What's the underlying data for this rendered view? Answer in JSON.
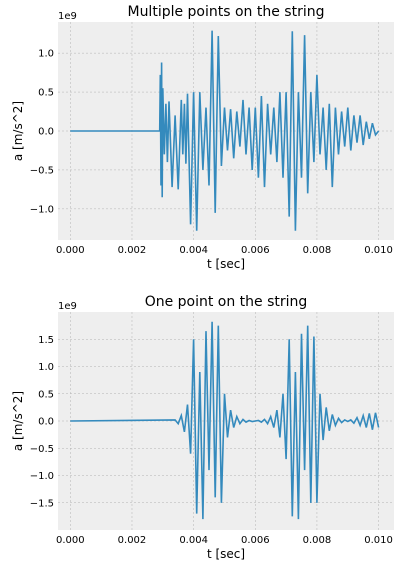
{
  "chart_data": [
    {
      "type": "line",
      "title": "Multiple points on the string",
      "xlabel": "t [sec]",
      "ylabel": "a [m/s^2]",
      "offset_label": "1e9",
      "xlim": [
        -0.0004,
        0.0105
      ],
      "ylim": [
        -1.4,
        1.4
      ],
      "xticks": [
        0.0,
        0.002,
        0.004,
        0.006,
        0.008,
        0.01
      ],
      "xtick_labels": [
        "0.000",
        "0.002",
        "0.004",
        "0.006",
        "0.008",
        "0.010"
      ],
      "yticks": [
        1.0,
        0.5,
        0.0,
        -0.5,
        -1.0
      ],
      "ytick_labels": [
        "1.0",
        "0.5",
        "0.0",
        "−0.5",
        "−1.0"
      ],
      "grid": true,
      "color": "#348ABD",
      "series": [
        {
          "x": [
            0.0,
            0.0029,
            0.00292,
            0.00294,
            0.00296,
            0.00298,
            0.003,
            0.00305,
            0.0031,
            0.00315,
            0.0032,
            0.0033,
            0.0034,
            0.0035,
            0.0036,
            0.00365,
            0.0037,
            0.00375,
            0.0038,
            0.0039,
            0.004,
            0.0041,
            0.0042,
            0.0043,
            0.0044,
            0.0045,
            0.0046,
            0.0047,
            0.0048,
            0.0049,
            0.005,
            0.0051,
            0.0052,
            0.0053,
            0.0054,
            0.0055,
            0.0056,
            0.0057,
            0.0058,
            0.0059,
            0.006,
            0.0061,
            0.0062,
            0.0063,
            0.0064,
            0.0065,
            0.0066,
            0.0067,
            0.0068,
            0.0069,
            0.007,
            0.0071,
            0.0072,
            0.0073,
            0.0074,
            0.0075,
            0.0076,
            0.0077,
            0.0078,
            0.0079,
            0.008,
            0.0081,
            0.0082,
            0.0083,
            0.0084,
            0.0085,
            0.0086,
            0.0087,
            0.0088,
            0.0089,
            0.009,
            0.0091,
            0.0092,
            0.0093,
            0.0094,
            0.0095,
            0.0096,
            0.0097,
            0.0098,
            0.0099,
            0.01
          ],
          "y": [
            0.0,
            0.0,
            0.72,
            -0.7,
            0.88,
            -0.85,
            0.55,
            -0.3,
            0.35,
            -0.4,
            0.38,
            -0.72,
            0.2,
            -0.75,
            0.4,
            -0.3,
            0.35,
            -0.42,
            0.48,
            -1.2,
            0.5,
            -1.28,
            0.5,
            -0.5,
            0.3,
            -0.7,
            1.29,
            -1.05,
            1.22,
            -0.45,
            0.3,
            -0.25,
            0.28,
            -0.35,
            0.25,
            -0.2,
            0.4,
            -0.3,
            0.3,
            -0.5,
            0.3,
            -0.6,
            0.45,
            -0.72,
            0.35,
            -0.3,
            0.3,
            -0.4,
            0.5,
            -0.6,
            0.5,
            -1.1,
            1.28,
            -1.28,
            0.5,
            -0.6,
            1.23,
            -0.8,
            0.5,
            -0.4,
            0.72,
            -0.3,
            0.3,
            -0.5,
            0.35,
            -0.72,
            0.3,
            -0.3,
            0.25,
            -0.2,
            0.3,
            -0.25,
            0.2,
            -0.15,
            0.2,
            -0.18,
            0.12,
            -0.1,
            0.1,
            -0.05,
            0.0
          ]
        }
      ]
    },
    {
      "type": "line",
      "title": "One point on the string",
      "xlabel": "t [sec]",
      "ylabel": "a [m/s^2]",
      "offset_label": "1e9",
      "xlim": [
        -0.0004,
        0.0105
      ],
      "ylim": [
        -2.0,
        2.0
      ],
      "xticks": [
        0.0,
        0.002,
        0.004,
        0.006,
        0.008,
        0.01
      ],
      "xtick_labels": [
        "0.000",
        "0.002",
        "0.004",
        "0.006",
        "0.008",
        "0.010"
      ],
      "yticks": [
        1.5,
        1.0,
        0.5,
        0.0,
        -0.5,
        -1.0,
        -1.5
      ],
      "ytick_labels": [
        "1.5",
        "1.0",
        "0.5",
        "0.0",
        "−0.5",
        "−1.0",
        "−1.5"
      ],
      "grid": true,
      "color": "#348ABD",
      "series": [
        {
          "x": [
            0.0,
            0.0034,
            0.0035,
            0.0036,
            0.0037,
            0.0038,
            0.0039,
            0.004,
            0.0041,
            0.0042,
            0.0043,
            0.0044,
            0.0045,
            0.0046,
            0.0047,
            0.0048,
            0.0049,
            0.005,
            0.0051,
            0.0052,
            0.0053,
            0.0054,
            0.0055,
            0.0056,
            0.0057,
            0.0058,
            0.0059,
            0.006,
            0.0061,
            0.0062,
            0.0063,
            0.0064,
            0.0065,
            0.0066,
            0.0067,
            0.0068,
            0.0069,
            0.007,
            0.0071,
            0.0072,
            0.0073,
            0.0074,
            0.0075,
            0.0076,
            0.0077,
            0.0078,
            0.0079,
            0.008,
            0.0081,
            0.0082,
            0.0083,
            0.0084,
            0.0085,
            0.0086,
            0.0087,
            0.0088,
            0.0089,
            0.009,
            0.0091,
            0.0092,
            0.0093,
            0.0094,
            0.0095,
            0.0096,
            0.0097,
            0.0098,
            0.0099,
            0.01
          ],
          "y": [
            0.0,
            0.02,
            -0.05,
            0.1,
            -0.2,
            0.3,
            -0.6,
            1.5,
            -1.7,
            0.9,
            -1.8,
            1.65,
            -0.9,
            1.82,
            -1.4,
            1.75,
            -1.5,
            0.5,
            -0.3,
            0.2,
            -0.12,
            0.08,
            -0.05,
            0.03,
            -0.02,
            0.01,
            -0.01,
            0.0,
            0.01,
            -0.02,
            0.03,
            -0.05,
            0.08,
            -0.12,
            0.2,
            -0.3,
            0.5,
            -0.7,
            1.5,
            -1.75,
            0.9,
            -1.8,
            1.6,
            -0.9,
            1.75,
            -1.5,
            1.55,
            -1.5,
            0.5,
            -0.35,
            0.25,
            -0.18,
            0.12,
            -0.08,
            0.05,
            -0.03,
            0.02,
            -0.01,
            0.02,
            -0.04,
            0.06,
            -0.08,
            0.1,
            -0.12,
            0.14,
            -0.16,
            0.15,
            -0.12
          ]
        }
      ]
    }
  ]
}
